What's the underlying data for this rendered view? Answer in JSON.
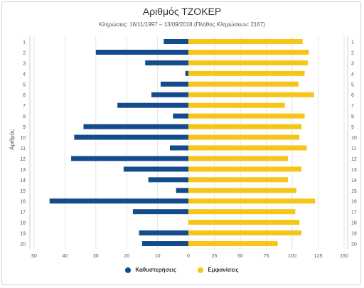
{
  "chart_data": {
    "type": "bar",
    "title": "Αριθμός ΤΖΟΚΕΡ",
    "subtitle": "Κληρώσεις: 16/11/1997 – 13/09/2018 (Πλήθος Κληρώσεων: 2167)",
    "ylabel": "Αριθμός",
    "categories": [
      "1",
      "2",
      "3",
      "4",
      "5",
      "6",
      "7",
      "8",
      "9",
      "10",
      "11",
      "12",
      "13",
      "14",
      "15",
      "16",
      "17",
      "18",
      "19",
      "20"
    ],
    "x_ticks_left": [
      "50",
      "40",
      "30",
      "20",
      "10",
      "0"
    ],
    "x_ticks_right": [
      "25",
      "50",
      "75",
      "100",
      "125",
      "150"
    ],
    "xlim_left": [
      50,
      0
    ],
    "xlim_right": [
      0,
      150
    ],
    "grid": true,
    "legend_position": "bottom",
    "series": [
      {
        "name": "Καθυστερήσεις",
        "color": "#144b8b",
        "values": [
          8,
          30,
          14,
          1,
          9,
          12,
          23,
          5,
          34,
          37,
          6,
          38,
          21,
          13,
          4,
          45,
          18,
          0,
          16,
          15
        ]
      },
      {
        "name": "Εμφανίσεις",
        "color": "#f5c518",
        "values": [
          110,
          116,
          115,
          112,
          106,
          121,
          93,
          112,
          109,
          107,
          114,
          96,
          109,
          96,
          104,
          122,
          103,
          107,
          109,
          86
        ]
      }
    ]
  }
}
